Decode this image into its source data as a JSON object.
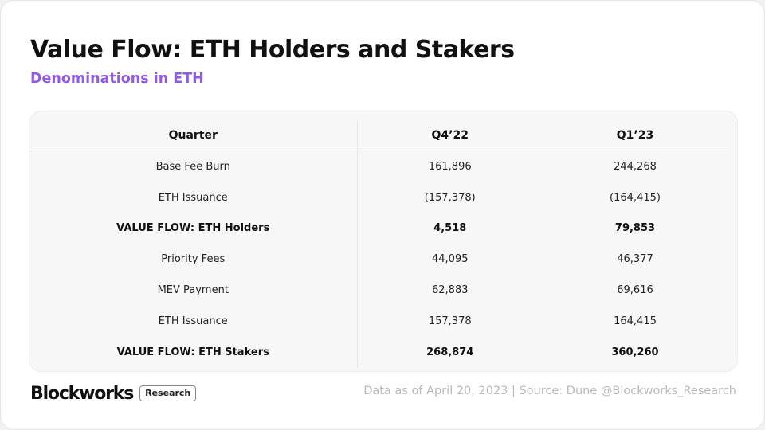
{
  "header": {
    "title": "Value Flow: ETH Holders and Stakers",
    "subtitle": "Denominations in ETH"
  },
  "table": {
    "columns": [
      "Quarter",
      "Q4’22",
      "Q1’23"
    ],
    "rows": [
      {
        "label": "Base Fee Burn",
        "q4_22": "161,896",
        "q1_23": "244,268",
        "bold": false
      },
      {
        "label": "ETH Issuance",
        "q4_22": "(157,378)",
        "q1_23": "(164,415)",
        "bold": false
      },
      {
        "label": "VALUE FLOW: ETH Holders",
        "q4_22": "4,518",
        "q1_23": "79,853",
        "bold": true
      },
      {
        "label": "Priority Fees",
        "q4_22": "44,095",
        "q1_23": "46,377",
        "bold": false
      },
      {
        "label": "MEV Payment",
        "q4_22": "62,883",
        "q1_23": "69,616",
        "bold": false
      },
      {
        "label": "ETH Issuance",
        "q4_22": "157,378",
        "q1_23": "164,415",
        "bold": false
      },
      {
        "label": "VALUE FLOW: ETH Stakers",
        "q4_22": "268,874",
        "q1_23": "360,260",
        "bold": true
      }
    ]
  },
  "footer": {
    "logo_text": "Blockworks",
    "logo_badge": "Research",
    "source": "Data as of April 20, 2023 | Source: Dune @Blockworks_Research"
  },
  "colors": {
    "subtitle_accent": "#8f5be0",
    "table_background": "#f7f7f7",
    "source_text": "#b8b8b8"
  }
}
